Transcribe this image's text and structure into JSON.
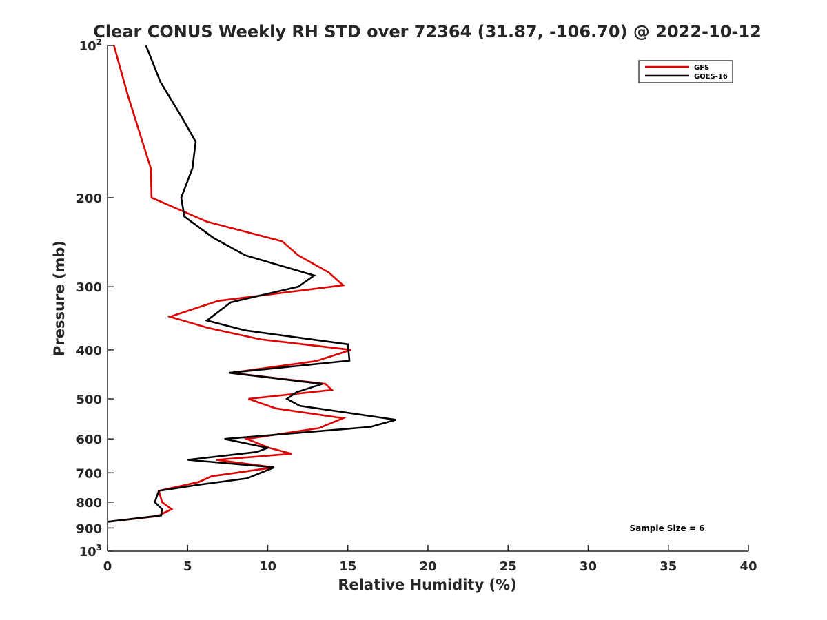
{
  "chart_data": {
    "type": "line",
    "title": "Clear CONUS Weekly RH STD over 72364 (31.87, -106.70) @ 2022-10-12",
    "xlabel": "Relative Humidity (%)",
    "ylabel": "Pressure (mb)",
    "xlim": [
      0,
      40
    ],
    "ylim": [
      100,
      1000
    ],
    "y_scale": "log",
    "y_reversed": true,
    "x_ticks": [
      0,
      5,
      10,
      15,
      20,
      25,
      30,
      35,
      40
    ],
    "x_tick_labels": [
      "0",
      "5",
      "10",
      "15",
      "20",
      "25",
      "30",
      "35",
      "40"
    ],
    "y_ticks": [
      100,
      200,
      300,
      400,
      500,
      600,
      700,
      800,
      900,
      1000
    ],
    "y_tick_labels": [
      {
        "base": "10",
        "sup": "2"
      },
      {
        "base": "200",
        "sup": ""
      },
      {
        "base": "300",
        "sup": ""
      },
      {
        "base": "400",
        "sup": ""
      },
      {
        "base": "500",
        "sup": ""
      },
      {
        "base": "600",
        "sup": ""
      },
      {
        "base": "700",
        "sup": ""
      },
      {
        "base": "800",
        "sup": ""
      },
      {
        "base": "900",
        "sup": ""
      },
      {
        "base": "10",
        "sup": "3"
      }
    ],
    "grid": false,
    "legend_position": "top-right",
    "annotation": "Sample Size = 6",
    "series": [
      {
        "name": "GFS",
        "color": "#e00000",
        "points": [
          [
            0.4,
            100
          ],
          [
            1.25,
            125
          ],
          [
            2.7,
            175
          ],
          [
            2.75,
            200
          ],
          [
            6.2,
            223
          ],
          [
            10.9,
            244
          ],
          [
            11.9,
            260
          ],
          [
            13.8,
            281
          ],
          [
            14.7,
            298
          ],
          [
            6.9,
            320
          ],
          [
            3.9,
            344
          ],
          [
            6.3,
            362
          ],
          [
            9.5,
            381
          ],
          [
            15.2,
            400
          ],
          [
            13.0,
            421
          ],
          [
            7.7,
            444
          ],
          [
            13.6,
            467
          ],
          [
            14.0,
            480
          ],
          [
            8.8,
            500
          ],
          [
            10.5,
            522
          ],
          [
            14.7,
            546
          ],
          [
            13.2,
            571
          ],
          [
            8.7,
            600
          ],
          [
            10.1,
            625
          ],
          [
            11.5,
            642
          ],
          [
            6.8,
            660
          ],
          [
            10.4,
            683
          ],
          [
            6.5,
            711
          ],
          [
            5.7,
            730
          ],
          [
            3.2,
            760
          ],
          [
            3.4,
            800
          ],
          [
            4.0,
            826
          ],
          [
            3.1,
            853
          ],
          [
            0.0,
            875
          ]
        ]
      },
      {
        "name": "GOES-16",
        "color": "#000000",
        "points": [
          [
            2.4,
            100
          ],
          [
            3.3,
            118
          ],
          [
            4.6,
            138
          ],
          [
            5.5,
            155
          ],
          [
            5.3,
            175
          ],
          [
            4.6,
            200
          ],
          [
            4.8,
            218
          ],
          [
            6.6,
            240
          ],
          [
            8.6,
            260
          ],
          [
            12.9,
            285
          ],
          [
            11.9,
            300
          ],
          [
            7.7,
            322
          ],
          [
            6.2,
            350
          ],
          [
            8.6,
            366
          ],
          [
            15.0,
            390
          ],
          [
            15.1,
            420
          ],
          [
            7.6,
            444
          ],
          [
            13.4,
            467
          ],
          [
            11.8,
            485
          ],
          [
            11.2,
            500
          ],
          [
            12.0,
            516
          ],
          [
            18.0,
            550
          ],
          [
            16.4,
            568
          ],
          [
            7.3,
            600
          ],
          [
            10.0,
            625
          ],
          [
            9.3,
            637
          ],
          [
            5.0,
            660
          ],
          [
            10.4,
            683
          ],
          [
            8.7,
            718
          ],
          [
            5.6,
            740
          ],
          [
            3.2,
            760
          ],
          [
            2.95,
            800
          ],
          [
            3.4,
            826
          ],
          [
            3.35,
            850
          ],
          [
            0.0,
            875
          ]
        ]
      }
    ]
  }
}
